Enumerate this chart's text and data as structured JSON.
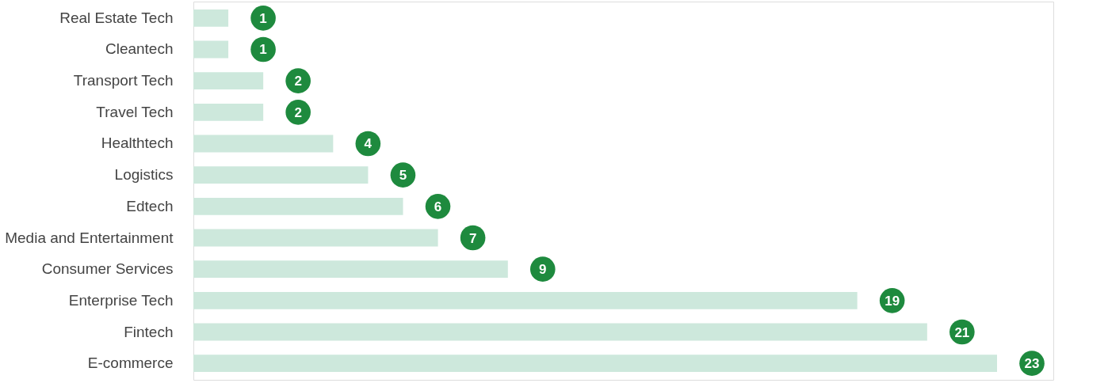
{
  "chart_data": {
    "type": "bar",
    "orientation": "horizontal",
    "categories": [
      "Real Estate Tech",
      "Cleantech",
      "Transport Tech",
      "Travel Tech",
      "Healthtech",
      "Logistics",
      "Edtech",
      "Media and Entertainment",
      "Consumer Services",
      "Enterprise Tech",
      "Fintech",
      "E-commerce"
    ],
    "values": [
      1,
      1,
      2,
      2,
      4,
      5,
      6,
      7,
      9,
      19,
      21,
      23
    ],
    "color": "#cde8dc",
    "data_labels": true
  }
}
